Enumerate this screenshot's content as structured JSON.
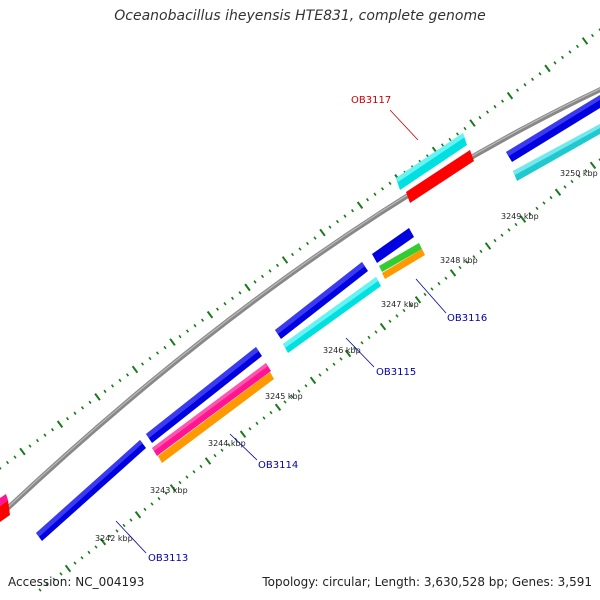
{
  "title": "Oceanobacillus iheyensis HTE831, complete genome",
  "footer": {
    "accession": "Accession: NC_004193",
    "stats": "Topology: circular; Length: 3,630,528 bp; Genes: 3,591"
  },
  "tick_labels": [
    "3242 kbp",
    "3243 kbp",
    "3244 kbp",
    "3245 kbp",
    "3246 kbp",
    "3247 kbp",
    "3248 kbp",
    "3249 kbp",
    "3250 kbp"
  ],
  "gene_labels": [
    {
      "text": "OB3113",
      "color": "#0000aa"
    },
    {
      "text": "OB3114",
      "color": "#0000aa"
    },
    {
      "text": "OB3115",
      "color": "#0000aa"
    },
    {
      "text": "OB3116",
      "color": "#0000aa"
    },
    {
      "text": "OB3117",
      "color": "#cc0000"
    }
  ],
  "colors": {
    "backbone": "#888888",
    "blue": "#0000e0",
    "cyan": "#00e0e0",
    "red": "#ff0000",
    "pink": "#ff1493",
    "orange": "#ff9900",
    "green": "#33cc33",
    "tick": "#1a7a1a"
  }
}
